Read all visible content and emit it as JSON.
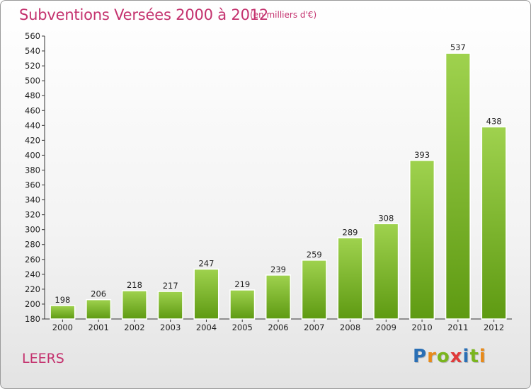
{
  "title": "Subventions Versées 2000 à 2012",
  "subtitle": "(en milliers d'€)",
  "commune": "LEERS",
  "logo": {
    "letters": [
      "P",
      "r",
      "o",
      "x",
      "i",
      "t",
      "i"
    ],
    "colors": [
      "#2a6fb5",
      "#e88a1a",
      "#7ab51e",
      "#e03a3a",
      "#2a6fb5",
      "#7ab51e",
      "#e88a1a"
    ]
  },
  "colors": {
    "bar_top": "#9fd24e",
    "bar_bottom": "#5e9a12",
    "accent": "#c4326e"
  },
  "chart_data": {
    "type": "bar",
    "categories": [
      "2000",
      "2001",
      "2002",
      "2003",
      "2004",
      "2005",
      "2006",
      "2007",
      "2008",
      "2009",
      "2010",
      "2011",
      "2012"
    ],
    "values": [
      198,
      206,
      218,
      217,
      247,
      219,
      239,
      259,
      289,
      308,
      393,
      537,
      438
    ],
    "data_labels": [
      "198",
      "206",
      "218",
      "217",
      "247",
      "219",
      "239",
      "259",
      "289",
      "308",
      "393",
      "537",
      "438"
    ],
    "yticks": [
      "180",
      "200",
      "220",
      "240",
      "260",
      "280",
      "300",
      "320",
      "340",
      "360",
      "380",
      "400",
      "420",
      "440",
      "460",
      "480",
      "500",
      "520",
      "540",
      "560"
    ],
    "ylim": [
      180,
      560
    ],
    "grid": false,
    "legend": "none"
  }
}
